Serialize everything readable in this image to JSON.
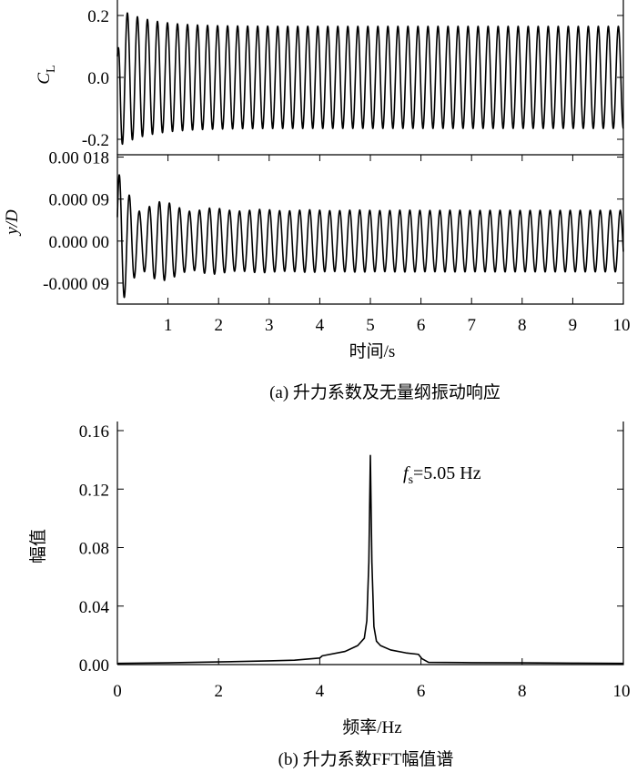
{
  "chart_data": [
    {
      "type": "line",
      "panel": "a-top",
      "ylabel_main": "C",
      "ylabel_sub": "L",
      "xlim": [
        0,
        10
      ],
      "ylim": [
        -0.25,
        0.25
      ],
      "yticks": [
        "0.2",
        "0.0",
        "-0.2"
      ],
      "ytick_values": [
        0.2,
        0.0,
        -0.2
      ],
      "series": [
        {
          "signal": {
            "frequency_hz": 5.05,
            "steady_amplitude": 0.165,
            "initial_amplitude": 0.225,
            "settle_time_s": 1.0
          }
        }
      ]
    },
    {
      "type": "line",
      "panel": "a-bottom",
      "ylabel": "y/D",
      "xlabel": "时间/s",
      "xlim": [
        0,
        10
      ],
      "ylim": [
        -0.000135,
        0.000185
      ],
      "yticks": [
        "0.00 018",
        "0.000 09",
        "0.000 00",
        "-0.000 09"
      ],
      "ytick_values": [
        0.00018,
        9e-05,
        0.0,
        -9e-05
      ],
      "xticks": [
        "1",
        "2",
        "3",
        "4",
        "5",
        "6",
        "7",
        "8",
        "9",
        "10"
      ],
      "xtick_values": [
        1,
        2,
        3,
        4,
        5,
        6,
        7,
        8,
        9,
        10
      ],
      "series": [
        {
          "signal": {
            "frequency_hz": 5.05,
            "steady_amplitude": 6.6e-05,
            "initial_peak_max": 0.00014,
            "initial_peak_min": -0.00013,
            "start_value": 3e-05
          }
        }
      ]
    },
    {
      "type": "line",
      "panel": "b",
      "xlabel": "频率/Hz",
      "ylabel": "幅值",
      "xlim": [
        0,
        10
      ],
      "ylim": [
        0,
        0.16
      ],
      "xticks": [
        "0",
        "2",
        "4",
        "6",
        "8",
        "10"
      ],
      "xtick_values": [
        0,
        2,
        4,
        6,
        8,
        10
      ],
      "yticks": [
        "0.16",
        "0.12",
        "0.08",
        "0.04",
        "0.00"
      ],
      "ytick_values": [
        0.16,
        0.12,
        0.08,
        0.04,
        0.0
      ],
      "annotation": {
        "f_main": "f",
        "f_sub": "s",
        "text": "=5.05 Hz"
      },
      "series": [
        {
          "x": [
            0,
            1,
            2,
            3,
            3.5,
            4.0,
            4.05,
            4.5,
            4.75,
            4.88,
            4.93,
            4.97,
            5.0,
            5.03,
            5.07,
            5.12,
            5.2,
            5.4,
            5.7,
            5.95,
            6.02,
            6.15,
            7,
            8,
            9,
            10
          ],
          "y": [
            0.0008,
            0.0012,
            0.0018,
            0.0025,
            0.003,
            0.0045,
            0.006,
            0.009,
            0.013,
            0.018,
            0.03,
            0.07,
            0.143,
            0.07,
            0.026,
            0.016,
            0.013,
            0.01,
            0.008,
            0.007,
            0.004,
            0.0015,
            0.0013,
            0.0012,
            0.001,
            0.0008
          ]
        }
      ]
    }
  ],
  "captions": {
    "a": "(a) 升力系数及无量纲振动响应",
    "b": "(b) 升力系数FFT幅值谱"
  }
}
